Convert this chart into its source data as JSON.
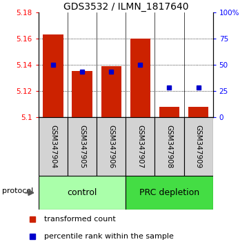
{
  "title": "GDS3532 / ILMN_1817640",
  "samples": [
    "GSM347904",
    "GSM347905",
    "GSM347906",
    "GSM347907",
    "GSM347908",
    "GSM347909"
  ],
  "red_values": [
    5.163,
    5.135,
    5.139,
    5.16,
    5.108,
    5.108
  ],
  "blue_pct": [
    50,
    43,
    43,
    50,
    28,
    28
  ],
  "ylim_left": [
    5.1,
    5.18
  ],
  "ylim_right": [
    0,
    100
  ],
  "yticks_left": [
    5.1,
    5.12,
    5.14,
    5.16,
    5.18
  ],
  "yticks_right": [
    0,
    25,
    50,
    75,
    100
  ],
  "ytick_labels_left": [
    "5.1",
    "5.12",
    "5.14",
    "5.16",
    "5.18"
  ],
  "ytick_labels_right": [
    "0",
    "25",
    "50",
    "75",
    "100%"
  ],
  "groups": [
    {
      "label": "control",
      "indices": [
        0,
        1,
        2
      ],
      "color": "#AAFFAA"
    },
    {
      "label": "PRC depletion",
      "indices": [
        3,
        4,
        5
      ],
      "color": "#44DD44"
    }
  ],
  "bar_color": "#CC2200",
  "blue_color": "#0000CC",
  "bar_width": 0.7,
  "baseline": 5.1,
  "protocol_label": "protocol",
  "legend_red": "transformed count",
  "legend_blue": "percentile rank within the sample",
  "title_fontsize": 10,
  "tick_fontsize": 7.5,
  "sample_fontsize": 7.5,
  "group_fontsize": 9,
  "legend_fontsize": 8
}
